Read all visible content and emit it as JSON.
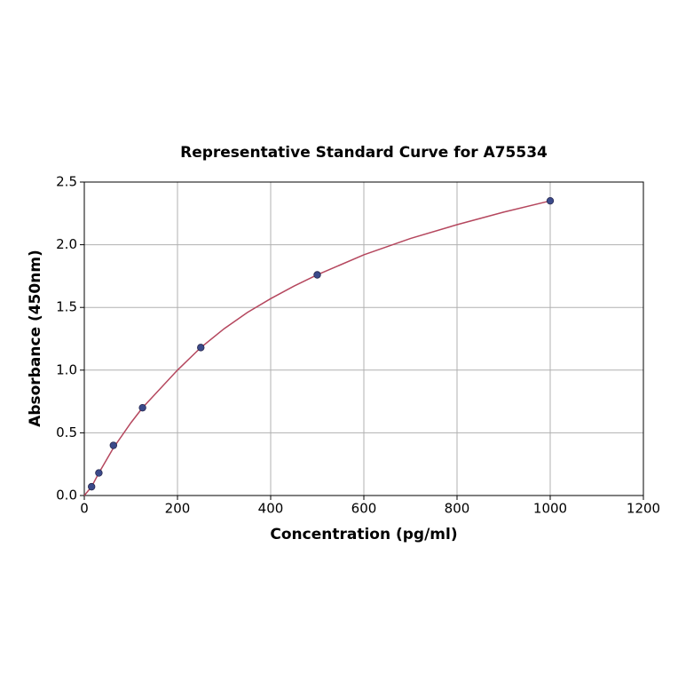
{
  "chart_data": {
    "type": "scatter",
    "title": "Representative Standard Curve for A75534",
    "xlabel": "Concentration (pg/ml)",
    "ylabel": "Absorbance (450nm)",
    "x": [
      15.6,
      31.25,
      62.5,
      125,
      250,
      500,
      1000
    ],
    "values": [
      0.07,
      0.18,
      0.4,
      0.7,
      1.18,
      1.76,
      2.35
    ],
    "color": "#3b4a8a",
    "fit": {
      "x": [
        0,
        15.6,
        31.25,
        62.5,
        100,
        125,
        150,
        200,
        250,
        300,
        350,
        400,
        450,
        500,
        600,
        700,
        800,
        900,
        1000
      ],
      "values": [
        0.0,
        0.07,
        0.18,
        0.38,
        0.58,
        0.7,
        0.8,
        1.0,
        1.18,
        1.33,
        1.46,
        1.57,
        1.67,
        1.76,
        1.92,
        2.05,
        2.16,
        2.26,
        2.35
      ],
      "color": "#b5475e"
    },
    "xlim": [
      0,
      1200
    ],
    "xticks": [
      0,
      200,
      400,
      600,
      800,
      1000,
      1200
    ],
    "ylim": [
      0,
      2.5
    ],
    "yticks": [
      {
        "value": 0,
        "label": "0.0"
      },
      0.5,
      {
        "value": 1,
        "label": "1.0"
      },
      1.5,
      {
        "value": 2,
        "label": "2.0"
      },
      2.5
    ],
    "grid": true
  }
}
